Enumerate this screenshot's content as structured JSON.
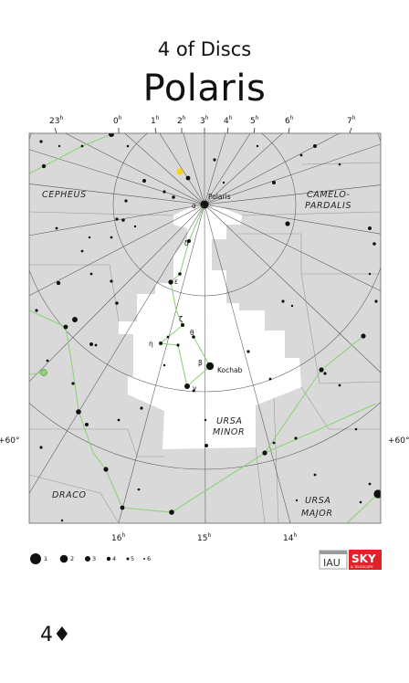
{
  "header": {
    "subtitle": "4 of Discs",
    "title": "Polaris"
  },
  "ra_top": [
    {
      "h": "23",
      "sup": "h"
    },
    {
      "h": "0",
      "sup": "h"
    },
    {
      "h": "1",
      "sup": "h"
    },
    {
      "h": "2",
      "sup": "h"
    },
    {
      "h": "3",
      "sup": "h"
    },
    {
      "h": "4",
      "sup": "h"
    },
    {
      "h": "5",
      "sup": "h"
    },
    {
      "h": "6",
      "sup": "h"
    },
    {
      "h": "7",
      "sup": "h"
    }
  ],
  "ra_bottom": [
    {
      "h": "16",
      "sup": "h"
    },
    {
      "h": "15",
      "sup": "h"
    },
    {
      "h": "14",
      "sup": "h"
    }
  ],
  "dec": {
    "left": "+60°",
    "right": "+60°"
  },
  "constellations": {
    "cepheus": "CEPHEUS",
    "camelo1": "CAMELO-",
    "camelo2": "PARDALIS",
    "ursa_minor1": "URSA",
    "ursa_minor2": "MINOR",
    "draco": "DRACO",
    "ursa_major1": "URSA",
    "ursa_major2": "MAJOR"
  },
  "star_labels": {
    "polaris": "Polaris",
    "kochab": "Kochab",
    "alpha": "α",
    "delta": "δ",
    "epsilon": "ε",
    "zeta": "ζ",
    "eta": "η",
    "theta": "θ",
    "beta": "β",
    "gamma": "γ"
  },
  "magnitude_legend": [
    "1",
    "2",
    "3",
    "4",
    "5",
    "6"
  ],
  "logos": {
    "iau": "IAU",
    "sky": "SKY",
    "sky_sub": "& TELESCOPE"
  },
  "colors": {
    "map_grey": "#d9d9d9",
    "constellation_line": "#8fd27a",
    "star": "#111111",
    "logo_red": "#e0232b",
    "planet": "#f2d31a"
  },
  "card": {
    "rank": "4",
    "suit": "♦"
  }
}
